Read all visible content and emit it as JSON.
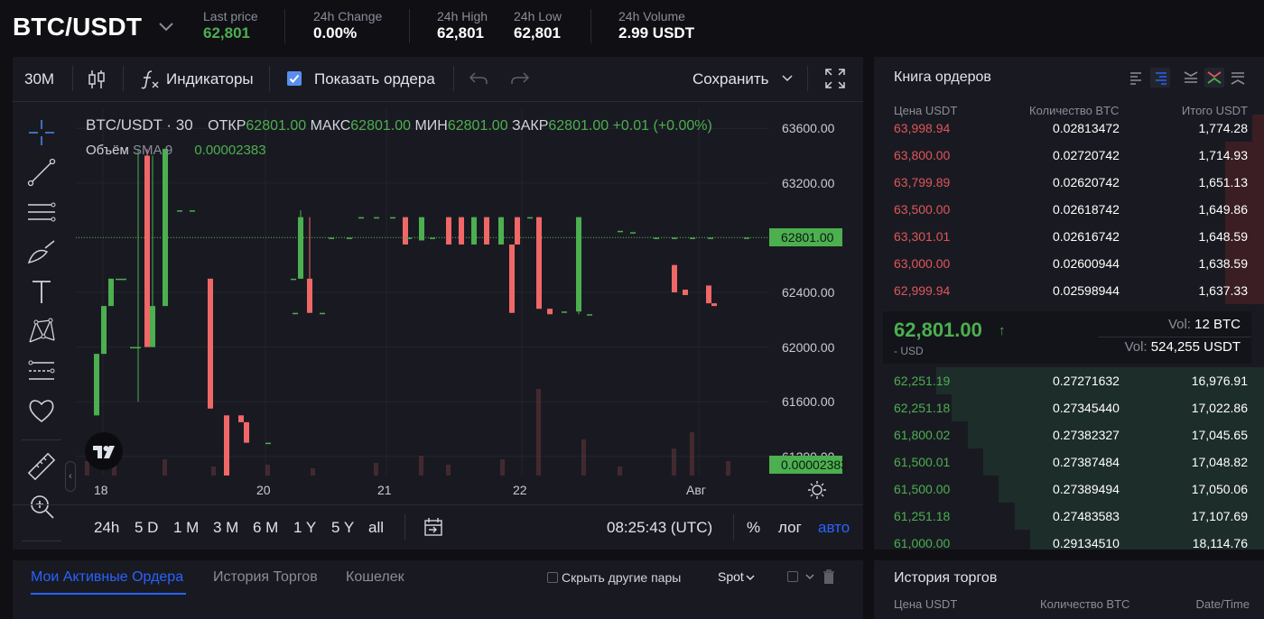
{
  "header": {
    "pair": "BTC/USDT",
    "stats": [
      {
        "label": "Last price",
        "value": "62,801",
        "accent": true
      },
      {
        "label": "24h Change",
        "value": "0.00%"
      },
      {
        "label": "24h High",
        "value": "62,801"
      },
      {
        "label": "24h Low",
        "value": "62,801"
      },
      {
        "label": "24h Volume",
        "value": "2.99 USDT"
      }
    ]
  },
  "chart_toolbar": {
    "interval": "30M",
    "indicators": "Индикаторы",
    "show_orders": "Показать ордера",
    "save": "Сохранить"
  },
  "chart_legend": {
    "symbol": "BTC/USDT · 30",
    "open_label": "ОТКР",
    "open": "62801.00",
    "high_label": "МАКС",
    "high": "62801.00",
    "low_label": "МИН",
    "low": "62801.00",
    "close_label": "ЗАКР",
    "close": "62801.00",
    "change": "+0.01 (+0.00%)",
    "volume_label": "Объём",
    "volume_ma": "SMA 9",
    "volume_value": "0.00002383"
  },
  "chart_data": {
    "type": "candlestick",
    "x_ticks": [
      "18",
      "20",
      "21",
      "22",
      "Авг"
    ],
    "y_ticks": [
      63600,
      63200,
      62800,
      62400,
      62000,
      61600,
      61200
    ],
    "y_tick_labels": [
      "63600.00",
      "63200.00",
      "62800.00",
      "62400.00",
      "62000.00",
      "61600.00",
      "61200.00"
    ],
    "ylim": [
      61060,
      63740
    ],
    "last_price_label": "62801.00",
    "last_price": 62801,
    "volume_label": "0.00002383",
    "colors": {
      "up": "#4caf50",
      "down": "#f06767"
    },
    "candles": [
      {
        "o": 61500,
        "h": 61950,
        "l": 61500,
        "c": 61950
      },
      {
        "o": 61950,
        "h": 62300,
        "l": 61950,
        "c": 62300
      },
      {
        "o": 62300,
        "h": 62500,
        "l": 62300,
        "c": 62500
      },
      {
        "o": 62500,
        "h": 62500,
        "l": 62500,
        "c": 62500
      },
      {
        "o": 62500,
        "h": 62500,
        "l": 62500,
        "c": 62500
      },
      {
        "o": 62000,
        "h": 62000,
        "l": 62000,
        "c": 62000
      },
      {
        "o": 62000,
        "h": 63450,
        "l": 61600,
        "c": 62000
      },
      {
        "o": 63400,
        "h": 63450,
        "l": 62000,
        "c": 62000
      },
      {
        "o": 62000,
        "h": 63400,
        "l": 62000,
        "c": 62300
      },
      {
        "o": 62300,
        "h": 63450,
        "l": 62300,
        "c": 63450
      },
      {
        "o": 63000,
        "h": 63000,
        "l": 63000,
        "c": 63000
      },
      {
        "o": 63000,
        "h": 63000,
        "l": 63000,
        "c": 63000
      },
      {
        "o": 62500,
        "h": 62500,
        "l": 61550,
        "c": 61550
      },
      {
        "o": 61500,
        "h": 61500,
        "l": 60850,
        "c": 60850
      },
      {
        "o": 61500,
        "h": 61500,
        "l": 61450,
        "c": 61450
      },
      {
        "o": 61450,
        "h": 61450,
        "l": 61300,
        "c": 61300
      },
      {
        "o": 61300,
        "h": 61300,
        "l": 61300,
        "c": 61300
      },
      {
        "o": 62500,
        "h": 62500,
        "l": 62500,
        "c": 62500
      },
      {
        "o": 62500,
        "h": 63000,
        "l": 62500,
        "c": 62950
      },
      {
        "o": 62500,
        "h": 62950,
        "l": 62250,
        "c": 62250
      },
      {
        "o": 62250,
        "h": 62250,
        "l": 62250,
        "c": 62250
      },
      {
        "o": 62250,
        "h": 62250,
        "l": 62250,
        "c": 62250
      },
      {
        "o": 62800,
        "h": 62800,
        "l": 62800,
        "c": 62800
      },
      {
        "o": 62800,
        "h": 62800,
        "l": 62800,
        "c": 62800
      },
      {
        "o": 62950,
        "h": 62950,
        "l": 62950,
        "c": 62950
      },
      {
        "o": 62950,
        "h": 62950,
        "l": 62950,
        "c": 62950
      },
      {
        "o": 62950,
        "h": 62950,
        "l": 62950,
        "c": 62950
      },
      {
        "o": 62950,
        "h": 62950,
        "l": 62750,
        "c": 62750
      },
      {
        "o": 62800,
        "h": 62800,
        "l": 62800,
        "c": 62800
      },
      {
        "o": 62780,
        "h": 62950,
        "l": 62780,
        "c": 62950
      },
      {
        "o": 62800,
        "h": 62800,
        "l": 62800,
        "c": 62800
      },
      {
        "o": 62950,
        "h": 62950,
        "l": 62750,
        "c": 62750
      },
      {
        "o": 62950,
        "h": 62950,
        "l": 62750,
        "c": 62750
      },
      {
        "o": 62750,
        "h": 62950,
        "l": 62750,
        "c": 62950
      },
      {
        "o": 62950,
        "h": 62950,
        "l": 62750,
        "c": 62750
      },
      {
        "o": 62750,
        "h": 62950,
        "l": 62750,
        "c": 62950
      },
      {
        "o": 62750,
        "h": 62750,
        "l": 62250,
        "c": 62250
      },
      {
        "o": 62950,
        "h": 62950,
        "l": 62750,
        "c": 62750
      },
      {
        "o": 62950,
        "h": 62950,
        "l": 62280,
        "c": 62280
      },
      {
        "o": 62950,
        "h": 62950,
        "l": 62950,
        "c": 62950
      },
      {
        "o": 62280,
        "h": 62280,
        "l": 62240,
        "c": 62240
      },
      {
        "o": 62260,
        "h": 62260,
        "l": 62260,
        "c": 62260
      },
      {
        "o": 62260,
        "h": 62950,
        "l": 62240,
        "c": 62950
      },
      {
        "o": 62240,
        "h": 62240,
        "l": 62240,
        "c": 62240
      },
      {
        "o": 62850,
        "h": 62850,
        "l": 62850,
        "c": 62850
      },
      {
        "o": 62840,
        "h": 62840,
        "l": 62840,
        "c": 62840
      },
      {
        "o": 62800,
        "h": 62800,
        "l": 62800,
        "c": 62800
      },
      {
        "o": 62800,
        "h": 62800,
        "l": 62800,
        "c": 62800
      },
      {
        "o": 62800,
        "h": 62800,
        "l": 62800,
        "c": 62800
      },
      {
        "o": 62800,
        "h": 62800,
        "l": 62800,
        "c": 62800
      },
      {
        "o": 62600,
        "h": 62600,
        "l": 62400,
        "c": 62400
      },
      {
        "o": 62420,
        "h": 62420,
        "l": 62380,
        "c": 62380
      },
      {
        "o": 62450,
        "h": 62450,
        "l": 62320,
        "c": 62320
      },
      {
        "o": 62320,
        "h": 62320,
        "l": 62300,
        "c": 62300
      },
      {
        "o": 62801,
        "h": 62801,
        "l": 62801,
        "c": 62801
      }
    ],
    "candle_x": [
      20,
      28,
      36,
      44,
      50,
      60,
      66,
      76,
      82,
      96,
      112,
      126,
      146,
      164,
      180,
      186,
      210,
      238,
      246,
      256,
      240,
      270,
      280,
      300,
      313,
      330,
      348,
      362,
      366,
      380,
      392,
      410,
      424,
      438,
      452,
      468,
      480,
      486,
      510,
      500,
      522,
      538,
      554,
      566,
      600,
      614,
      640,
      660,
      680,
      700,
      660,
      672,
      698,
      704,
      740
    ]
  },
  "bottom_toolbar": {
    "ranges": [
      "24h",
      "5 D",
      "1 M",
      "3 M",
      "6 M",
      "1 Y",
      "5 Y",
      "all"
    ],
    "time": "08:25:43 (UTC)",
    "percent": "%",
    "log": "лог",
    "auto": "авто"
  },
  "orderbook": {
    "title": "Книга ордеров",
    "col_price": "Цена USDT",
    "col_qty": "Количество BTC",
    "col_total": "Итого USDT",
    "asks": [
      {
        "price": "63,998.94",
        "qty": "0.02813472",
        "total": "1,774.28",
        "depth": 0.03
      },
      {
        "price": "63,800.00",
        "qty": "0.02720742",
        "total": "1,714.93",
        "depth": 0.1
      },
      {
        "price": "63,799.89",
        "qty": "0.02620742",
        "total": "1,651.13",
        "depth": 0.1
      },
      {
        "price": "63,500.00",
        "qty": "0.02618742",
        "total": "1,649.86",
        "depth": 0.1
      },
      {
        "price": "63,301.01",
        "qty": "0.02616742",
        "total": "1,648.59",
        "depth": 0.1
      },
      {
        "price": "63,000.00",
        "qty": "0.02600944",
        "total": "1,638.59",
        "depth": 0.1
      },
      {
        "price": "62,999.94",
        "qty": "0.02598944",
        "total": "1,637.33",
        "depth": 0.1
      }
    ],
    "mid": {
      "price": "62,801.00",
      "arrow": "↑",
      "usd": "- USD",
      "vol1_label": "Vol:",
      "vol1": "12 BTC",
      "vol2_label": "Vol:",
      "vol2": "524,255 USDT"
    },
    "bids": [
      {
        "price": "62,251.19",
        "qty": "0.27271632",
        "total": "16,976.91",
        "depth": 0.84
      },
      {
        "price": "62,251.18",
        "qty": "0.27345440",
        "total": "17,022.86",
        "depth": 0.8
      },
      {
        "price": "61,800.02",
        "qty": "0.27382327",
        "total": "17,045.65",
        "depth": 0.76
      },
      {
        "price": "61,500.01",
        "qty": "0.27387484",
        "total": "17,048.82",
        "depth": 0.72
      },
      {
        "price": "61,500.00",
        "qty": "0.27389494",
        "total": "17,050.06",
        "depth": 0.68
      },
      {
        "price": "61,251.18",
        "qty": "0.27483583",
        "total": "17,107.69",
        "depth": 0.64
      },
      {
        "price": "61,000.00",
        "qty": "0.29134510",
        "total": "18,114.76",
        "depth": 0.6
      }
    ]
  },
  "orders_panel": {
    "tabs": [
      "Мои Активные Ордера",
      "История Торгов",
      "Кошелек"
    ],
    "hide_pairs": "Скрыть другие пары",
    "market": "Spot"
  },
  "trade_history": {
    "title": "История торгов",
    "col_price": "Цена USDT",
    "col_qty": "Количество BTC",
    "col_time": "Date/Time"
  }
}
